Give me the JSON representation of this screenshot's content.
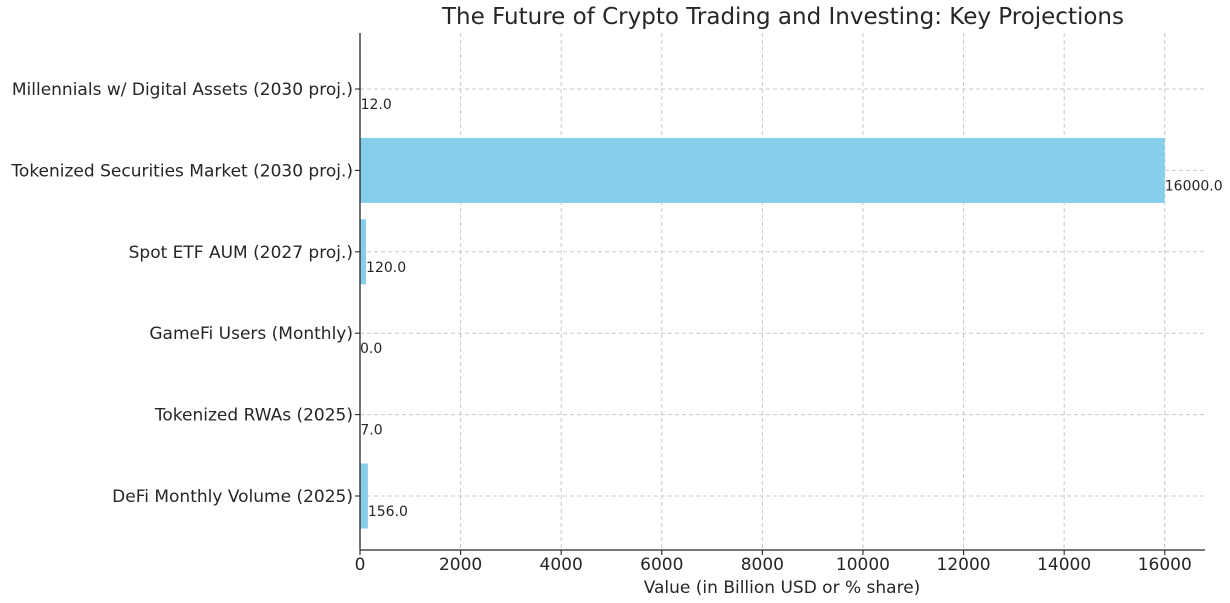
{
  "chart_data": {
    "type": "bar",
    "orientation": "horizontal",
    "title": "The Future of Crypto Trading and Investing: Key Projections",
    "xlabel": "Value (in Billion USD or % share)",
    "ylabel": "",
    "categories": [
      "DeFi Monthly Volume (2025)",
      "Tokenized RWAs (2025)",
      "GameFi Users (Monthly)",
      "Spot ETF AUM (2027 proj.)",
      "Tokenized Securities Market (2030 proj.)",
      "Millennials w/ Digital Assets (2030 proj.)"
    ],
    "values": [
      156.0,
      7.0,
      0.0,
      120.0,
      16000.0,
      12.0
    ],
    "data_labels": [
      "156.0",
      "7.0",
      "0.0",
      "120.0",
      "16000.0",
      "12.0"
    ],
    "xlim": [
      0,
      16800
    ],
    "xticks": [
      0,
      2000,
      4000,
      6000,
      8000,
      10000,
      12000,
      14000,
      16000
    ],
    "grid": true,
    "bar_color": "#87ceeb"
  }
}
